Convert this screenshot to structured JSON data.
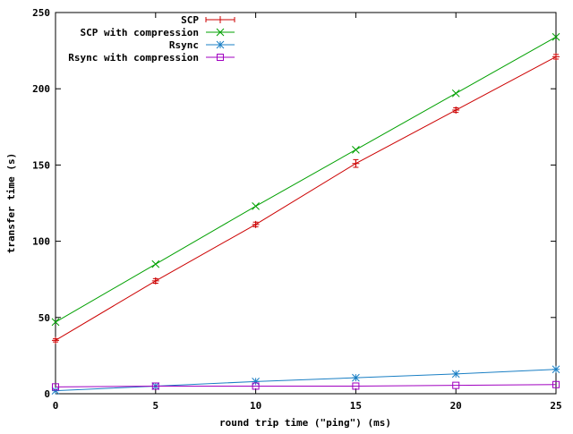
{
  "chart_data": {
    "type": "line",
    "title": "",
    "xlabel": "round trip time (\"ping\") (ms)",
    "ylabel": "transfer time (s)",
    "xlim": [
      0,
      25
    ],
    "ylim": [
      0,
      250
    ],
    "x_ticks": [
      0,
      5,
      10,
      15,
      20,
      25
    ],
    "y_ticks": [
      0,
      50,
      100,
      150,
      200,
      250
    ],
    "legend_position": "top-left",
    "grid": false,
    "x": [
      0,
      5,
      10,
      15,
      20,
      25
    ],
    "series": [
      {
        "name": "SCP",
        "color": "#cc0000",
        "marker": "plus",
        "values": [
          35,
          74,
          111,
          151,
          186,
          221
        ],
        "error": [
          1,
          1.5,
          1.5,
          2.5,
          1.5,
          1.5
        ]
      },
      {
        "name": "SCP with compression",
        "color": "#00a000",
        "marker": "cross",
        "values": [
          47,
          85,
          123,
          160,
          197,
          234
        ],
        "error": [
          0,
          0,
          0,
          0,
          0,
          0
        ]
      },
      {
        "name": "Rsync",
        "color": "#1a7fc4",
        "marker": "star",
        "values": [
          2,
          5,
          8,
          10.5,
          13,
          16
        ],
        "error": [
          0,
          0,
          0,
          0,
          0,
          0
        ]
      },
      {
        "name": "Rsync with compression",
        "color": "#a000c0",
        "marker": "square",
        "values": [
          4.5,
          5,
          5,
          5,
          5.5,
          6
        ],
        "error": [
          0,
          0,
          0,
          0,
          0,
          0
        ]
      }
    ]
  }
}
